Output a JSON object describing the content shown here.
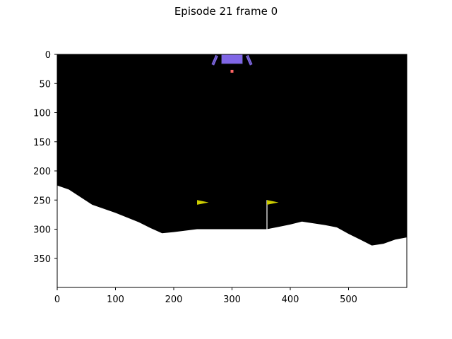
{
  "figure": {
    "title": "Episode 21 frame 0"
  },
  "axes": {
    "x_ticks": [
      0,
      100,
      200,
      300,
      400,
      500
    ],
    "y_ticks": [
      0,
      50,
      100,
      150,
      200,
      250,
      300,
      350
    ],
    "x_range": [
      0,
      600
    ],
    "y_range": [
      0,
      400
    ],
    "y_inverted": true
  },
  "scene": {
    "game": "Lunar Lander",
    "colors": {
      "sky": "#000000",
      "terrain": "#ffffff",
      "lander_body": "#8066e6",
      "lander_legs": "#8066e6",
      "flag": "#cccc00",
      "flag_pole": "#ffffff",
      "particle": "#ff6666"
    },
    "terrain_profile": [
      [
        0,
        225
      ],
      [
        20,
        232
      ],
      [
        40,
        245
      ],
      [
        60,
        258
      ],
      [
        80,
        265
      ],
      [
        100,
        272
      ],
      [
        120,
        280
      ],
      [
        140,
        288
      ],
      [
        160,
        298
      ],
      [
        180,
        307
      ],
      [
        200,
        305
      ],
      [
        240,
        300
      ],
      [
        360,
        300
      ],
      [
        380,
        296
      ],
      [
        400,
        292
      ],
      [
        420,
        287
      ],
      [
        440,
        290
      ],
      [
        460,
        293
      ],
      [
        480,
        297
      ],
      [
        500,
        308
      ],
      [
        520,
        318
      ],
      [
        540,
        328
      ],
      [
        560,
        325
      ],
      [
        580,
        318
      ],
      [
        600,
        314
      ]
    ],
    "flags": [
      {
        "x": 240,
        "pole_top": 250,
        "pole_bottom": 300,
        "pole_visible": false
      },
      {
        "x": 360,
        "pole_top": 250,
        "pole_bottom": 300,
        "pole_visible": true
      }
    ],
    "lander": {
      "x": 300,
      "y": 8
    },
    "particle": {
      "x": 300,
      "y": 29
    }
  }
}
